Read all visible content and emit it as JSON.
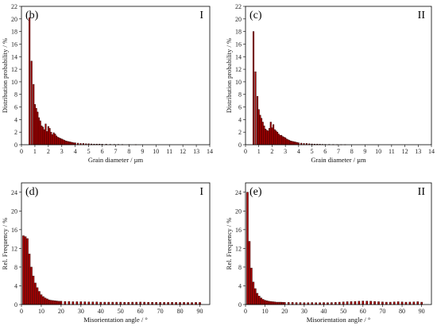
{
  "chart_data": [
    {
      "type": "bar",
      "panel_label": "(b)",
      "sample_label": "I",
      "xlabel": "Grain diameter / µm",
      "ylabel": "Distribution probability / %",
      "xlim": [
        0,
        14
      ],
      "ylim": [
        0,
        22
      ],
      "xticks": [
        0,
        1,
        2,
        3,
        4,
        5,
        6,
        7,
        8,
        9,
        10,
        11,
        12,
        13,
        14
      ],
      "yticks": [
        0,
        2,
        4,
        6,
        8,
        10,
        12,
        14,
        16,
        18,
        20,
        22
      ],
      "x": [
        0.6,
        0.75,
        0.9,
        1.0,
        1.1,
        1.2,
        1.3,
        1.4,
        1.5,
        1.6,
        1.7,
        1.8,
        1.9,
        2.0,
        2.1,
        2.2,
        2.3,
        2.4,
        2.5,
        2.6,
        2.7,
        2.8,
        2.9,
        3.0,
        3.1,
        3.2,
        3.3,
        3.4,
        3.5,
        3.6,
        3.7,
        3.8,
        3.9,
        4.0,
        4.2,
        4.4,
        4.6,
        4.8,
        5.0,
        5.2,
        5.4,
        5.6,
        5.8,
        6.0,
        6.3,
        6.6,
        6.9,
        7.2,
        7.5,
        8.0,
        8.5
      ],
      "values": [
        20.2,
        13.3,
        9.6,
        6.4,
        5.8,
        5.2,
        4.3,
        3.8,
        3.0,
        2.8,
        2.4,
        3.3,
        2.1,
        2.9,
        2.6,
        2.0,
        1.6,
        1.9,
        1.7,
        1.4,
        1.2,
        1.1,
        1.0,
        0.9,
        0.8,
        0.7,
        0.6,
        0.55,
        0.5,
        0.45,
        0.4,
        0.35,
        0.3,
        0.3,
        0.25,
        0.2,
        0.2,
        0.15,
        0.15,
        0.12,
        0.1,
        0.1,
        0.1,
        0.08,
        0.08,
        0.06,
        0.05,
        0.05,
        0.04,
        0.03,
        0.02
      ]
    },
    {
      "type": "bar",
      "panel_label": "(c)",
      "sample_label": "II",
      "xlabel": "Grain diameter / µm",
      "ylabel": "Distribution probability / %",
      "xlim": [
        0,
        14
      ],
      "ylim": [
        0,
        22
      ],
      "xticks": [
        0,
        1,
        2,
        3,
        4,
        5,
        6,
        7,
        8,
        9,
        10,
        11,
        12,
        13,
        14
      ],
      "yticks": [
        0,
        2,
        4,
        6,
        8,
        10,
        12,
        14,
        16,
        18,
        20,
        22
      ],
      "x": [
        0.6,
        0.75,
        0.9,
        1.0,
        1.1,
        1.2,
        1.3,
        1.4,
        1.5,
        1.6,
        1.7,
        1.8,
        1.9,
        2.0,
        2.1,
        2.2,
        2.3,
        2.4,
        2.5,
        2.6,
        2.7,
        2.8,
        2.9,
        3.0,
        3.1,
        3.2,
        3.3,
        3.4,
        3.5,
        3.6,
        3.7,
        3.8,
        3.9,
        4.0,
        4.2,
        4.4,
        4.6,
        4.8,
        5.0,
        5.2,
        5.4,
        5.6,
        5.8,
        6.0,
        6.3,
        6.6,
        6.9,
        7.2,
        7.5
      ],
      "values": [
        18.0,
        11.6,
        7.7,
        5.6,
        4.7,
        4.2,
        3.6,
        3.0,
        2.5,
        2.3,
        2.2,
        2.6,
        3.6,
        2.7,
        3.2,
        2.4,
        2.2,
        2.0,
        1.7,
        1.5,
        1.5,
        1.3,
        1.2,
        1.1,
        0.9,
        0.8,
        0.7,
        0.6,
        0.55,
        0.5,
        0.45,
        0.4,
        0.35,
        0.3,
        0.25,
        0.2,
        0.2,
        0.15,
        0.12,
        0.1,
        0.1,
        0.08,
        0.06,
        0.05,
        0.05,
        0.04,
        0.03,
        0.02,
        0.02
      ]
    },
    {
      "type": "bar",
      "panel_label": "(d)",
      "sample_label": "I",
      "xlabel": "Misorientation angle / °",
      "ylabel": "Rel. Frequency / %",
      "xlim": [
        0,
        95
      ],
      "ylim": [
        0,
        26
      ],
      "xticks": [
        0,
        10,
        20,
        30,
        40,
        50,
        60,
        70,
        80,
        90
      ],
      "yticks": [
        0,
        4,
        8,
        12,
        16,
        20,
        24
      ],
      "x": [
        1,
        2,
        3,
        4,
        5,
        6,
        7,
        8,
        9,
        10,
        11,
        12,
        13,
        14,
        15,
        16,
        17,
        18,
        19,
        20,
        22,
        24,
        26,
        28,
        30,
        32,
        34,
        36,
        38,
        40,
        42,
        44,
        46,
        48,
        50,
        52,
        54,
        56,
        58,
        60,
        62,
        64,
        66,
        68,
        70,
        72,
        74,
        76,
        78,
        80,
        82,
        84,
        86,
        88,
        90
      ],
      "values": [
        14.7,
        14.5,
        14.1,
        10.8,
        8.0,
        6.1,
        4.6,
        3.6,
        2.8,
        2.1,
        1.7,
        1.4,
        1.2,
        1.0,
        0.9,
        0.85,
        0.8,
        0.75,
        0.7,
        0.7,
        0.65,
        0.65,
        0.6,
        0.6,
        0.6,
        0.58,
        0.55,
        0.55,
        0.55,
        0.5,
        0.5,
        0.5,
        0.5,
        0.5,
        0.5,
        0.48,
        0.48,
        0.5,
        0.5,
        0.52,
        0.5,
        0.48,
        0.47,
        0.46,
        0.45,
        0.45,
        0.45,
        0.46,
        0.45,
        0.44,
        0.45,
        0.43,
        0.42,
        0.45,
        0.44
      ]
    },
    {
      "type": "bar",
      "panel_label": "(e)",
      "sample_label": "II",
      "xlabel": "Misorientation angle / °",
      "ylabel": "Rel. Frequency / %",
      "xlim": [
        0,
        95
      ],
      "ylim": [
        0,
        26
      ],
      "xticks": [
        0,
        10,
        20,
        30,
        40,
        50,
        60,
        70,
        80,
        90
      ],
      "yticks": [
        0,
        4,
        8,
        12,
        16,
        20,
        24
      ],
      "x": [
        1,
        2,
        3,
        4,
        5,
        6,
        7,
        8,
        9,
        10,
        11,
        12,
        13,
        14,
        15,
        16,
        17,
        18,
        19,
        20,
        22,
        24,
        26,
        28,
        30,
        32,
        34,
        36,
        38,
        40,
        42,
        44,
        46,
        48,
        50,
        52,
        54,
        56,
        58,
        60,
        62,
        64,
        66,
        68,
        70,
        72,
        74,
        76,
        78,
        80,
        82,
        84,
        86,
        88,
        90
      ],
      "values": [
        24.0,
        13.5,
        7.8,
        4.8,
        3.4,
        2.4,
        1.8,
        1.4,
        1.1,
        0.9,
        0.8,
        0.7,
        0.65,
        0.6,
        0.55,
        0.5,
        0.5,
        0.5,
        0.48,
        0.45,
        0.45,
        0.45,
        0.42,
        0.42,
        0.4,
        0.4,
        0.42,
        0.4,
        0.4,
        0.42,
        0.4,
        0.42,
        0.45,
        0.5,
        0.55,
        0.6,
        0.62,
        0.65,
        0.7,
        0.75,
        0.72,
        0.7,
        0.65,
        0.6,
        0.55,
        0.5,
        0.5,
        0.55,
        0.6,
        0.55,
        0.5,
        0.52,
        0.55,
        0.6,
        0.5
      ]
    }
  ]
}
